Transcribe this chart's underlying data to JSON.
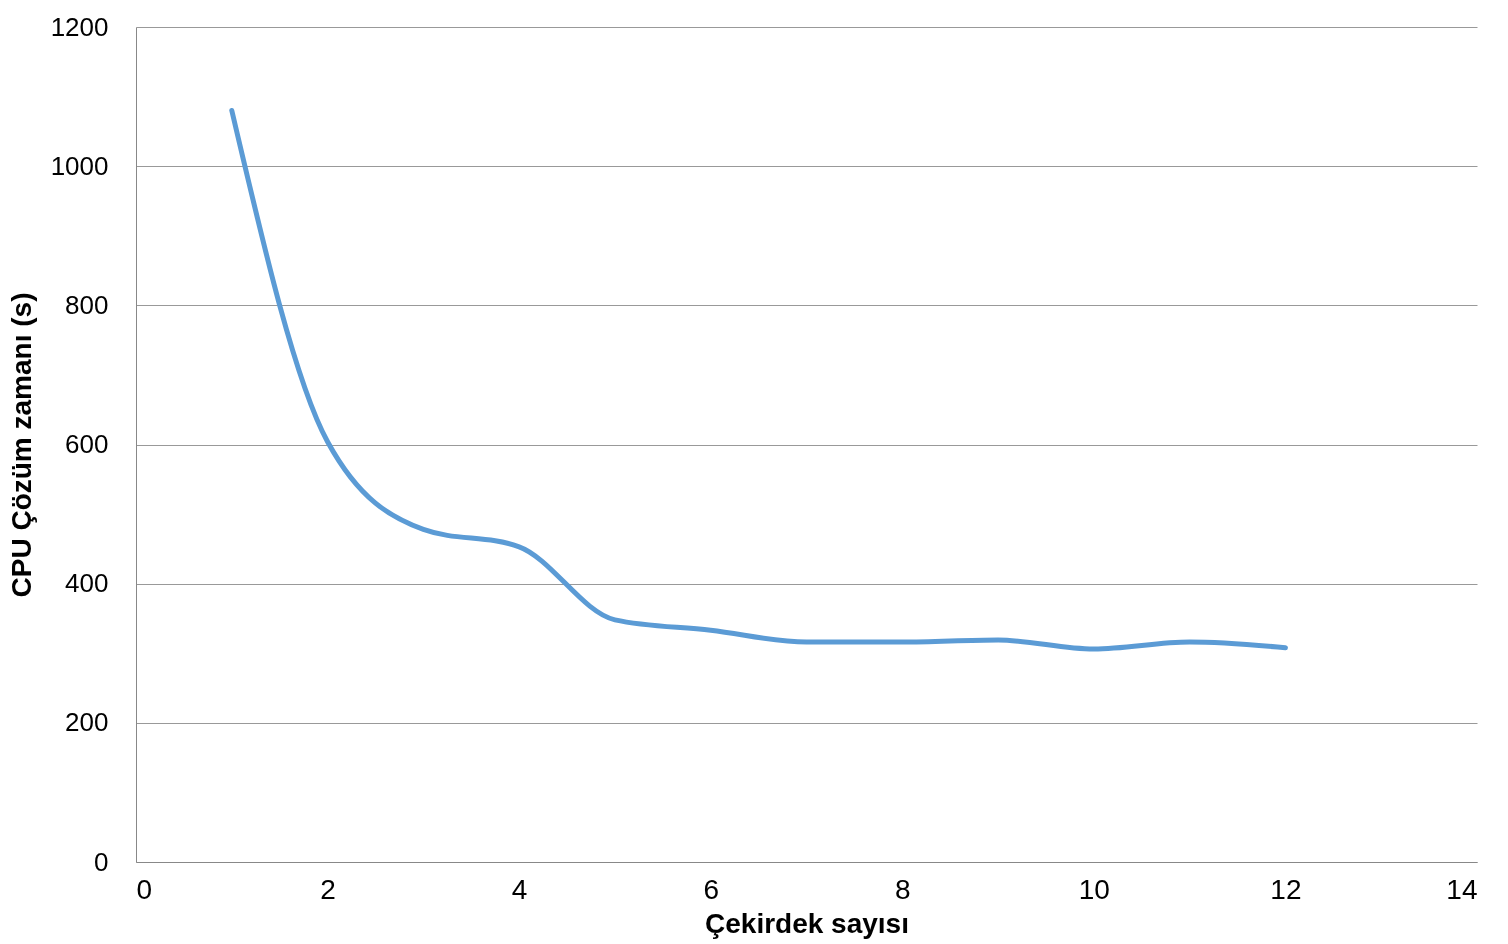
{
  "chart_data": {
    "type": "line",
    "xlabel": "Çekirdek sayısı",
    "ylabel": "CPU Çözüm zamanı (s)",
    "x": [
      1,
      2,
      3,
      4,
      5,
      6,
      7,
      8,
      9,
      10,
      11,
      12
    ],
    "series": [
      {
        "color": "#5b9bd5",
        "values": [
          1080,
          604,
          478,
          453,
          348,
          333,
          316,
          316,
          319,
          306,
          316,
          308
        ]
      }
    ],
    "xlim": [
      0,
      14
    ],
    "xticks": [
      0,
      2,
      4,
      6,
      8,
      10,
      12,
      14
    ],
    "ylim": [
      0,
      1200
    ],
    "yticks": [
      0,
      200,
      400,
      600,
      800,
      1000,
      1200
    ],
    "grid": "y",
    "marker": "none",
    "line_style": "solid"
  }
}
